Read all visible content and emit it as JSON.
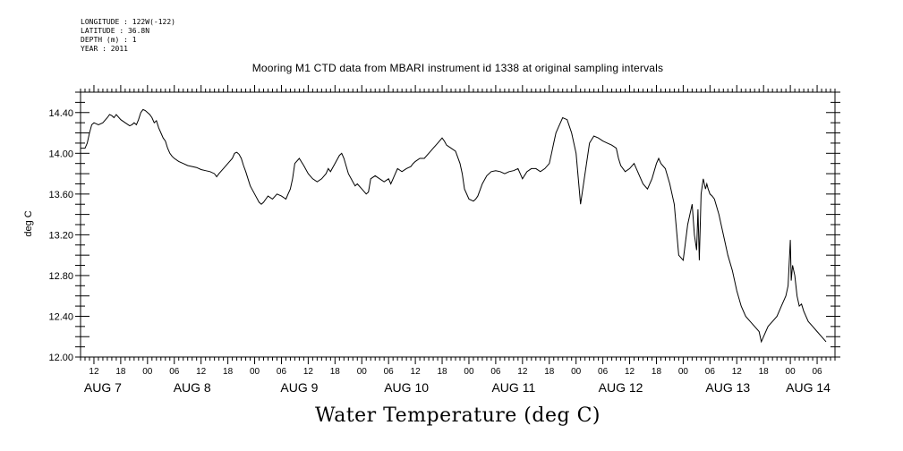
{
  "metadata": {
    "longitude": "LONGITUDE : 122W(-122)",
    "latitude": "LATITUDE : 36.8N",
    "depth": "DEPTH (m) : 1",
    "year": "YEAR : 2011"
  },
  "chart_data": {
    "type": "line",
    "title": "Mooring M1 CTD data from MBARI instrument id 1338 at original sampling intervals",
    "xlabel": "Water Temperature (deg C)",
    "ylabel": "deg C",
    "xlim": [
      -15,
      154
    ],
    "ylim": [
      12.0,
      14.6
    ],
    "y_ticks": [
      12.0,
      12.4,
      12.8,
      13.2,
      13.6,
      14.0,
      14.4
    ],
    "y_tick_labels": [
      "12.00",
      "12.40",
      "12.80",
      "13.20",
      "13.60",
      "14.00",
      "14.40"
    ],
    "hour_ticks": [
      {
        "x": -12,
        "label": "12"
      },
      {
        "x": -6,
        "label": "18"
      },
      {
        "x": 0,
        "label": "00"
      },
      {
        "x": 6,
        "label": "06"
      },
      {
        "x": 12,
        "label": "12"
      },
      {
        "x": 18,
        "label": "18"
      },
      {
        "x": 24,
        "label": "00"
      },
      {
        "x": 30,
        "label": "06"
      },
      {
        "x": 36,
        "label": "12"
      },
      {
        "x": 42,
        "label": "18"
      },
      {
        "x": 48,
        "label": "00"
      },
      {
        "x": 54,
        "label": "06"
      },
      {
        "x": 60,
        "label": "12"
      },
      {
        "x": 66,
        "label": "18"
      },
      {
        "x": 72,
        "label": "00"
      },
      {
        "x": 78,
        "label": "06"
      },
      {
        "x": 84,
        "label": "12"
      },
      {
        "x": 90,
        "label": "18"
      },
      {
        "x": 96,
        "label": "00"
      },
      {
        "x": 102,
        "label": "06"
      },
      {
        "x": 108,
        "label": "12"
      },
      {
        "x": 114,
        "label": "18"
      },
      {
        "x": 120,
        "label": "00"
      },
      {
        "x": 126,
        "label": "06"
      },
      {
        "x": 132,
        "label": "12"
      },
      {
        "x": 138,
        "label": "18"
      },
      {
        "x": 144,
        "label": "00"
      },
      {
        "x": 150,
        "label": "06"
      }
    ],
    "day_labels": [
      {
        "x": -10,
        "label": "AUG  7"
      },
      {
        "x": 10,
        "label": "AUG  8"
      },
      {
        "x": 34,
        "label": "AUG  9"
      },
      {
        "x": 58,
        "label": "AUG 10"
      },
      {
        "x": 82,
        "label": "AUG 11"
      },
      {
        "x": 106,
        "label": "AUG 12"
      },
      {
        "x": 130,
        "label": "AUG 13"
      },
      {
        "x": 148,
        "label": "AUG 14"
      }
    ],
    "series": [
      {
        "color": "#000000",
        "x": [
          -15,
          -14,
          -13.5,
          -13,
          -12.5,
          -12,
          -11,
          -10,
          -9,
          -8.5,
          -8,
          -7.5,
          -7,
          -6,
          -5,
          -4,
          -3.5,
          -3,
          -2.5,
          -2,
          -1.5,
          -1,
          -0.5,
          0,
          0.5,
          1,
          1.5,
          2,
          2.5,
          3,
          3.5,
          4,
          4.5,
          5,
          5.5,
          6,
          7,
          8,
          9,
          10,
          11,
          12,
          13,
          14,
          15,
          15.5,
          16,
          17,
          18,
          19,
          19.5,
          20,
          20.5,
          21,
          21.5,
          22,
          22.5,
          23,
          24,
          25,
          25.5,
          26,
          26.5,
          27,
          28,
          29,
          30,
          31,
          31.5,
          32,
          32.5,
          33,
          34,
          35,
          36,
          37,
          38,
          39,
          40,
          40.5,
          41,
          42,
          43,
          43.5,
          44,
          45,
          46,
          46.5,
          47,
          48,
          49,
          49.5,
          50,
          51,
          52,
          53,
          54,
          54.5,
          55,
          55.5,
          56,
          57,
          58,
          59,
          59.5,
          60,
          61,
          62,
          63,
          64,
          65,
          66,
          66.5,
          67,
          68,
          69,
          70,
          70.5,
          71,
          72,
          73,
          73.5,
          74,
          75,
          76,
          77,
          78,
          79,
          80,
          81,
          82,
          83,
          83.5,
          84,
          85,
          86,
          87,
          88,
          89,
          90,
          90.5,
          91,
          91.5,
          92,
          92.5,
          93,
          94,
          95,
          96,
          97,
          98,
          99,
          100,
          101,
          102,
          103,
          104,
          105,
          105.5,
          106,
          107,
          108,
          109,
          110,
          110.5,
          111,
          112,
          113,
          114,
          114.5,
          115,
          116,
          117,
          118,
          119,
          120,
          121,
          122,
          122.5,
          123,
          123.3,
          123.6,
          124,
          124.5,
          125,
          125.3,
          125.6,
          126,
          126.5,
          127,
          128,
          129,
          130,
          131,
          132,
          133,
          134,
          135,
          136,
          137,
          137.5,
          138,
          139,
          140,
          141,
          142,
          143,
          143.5,
          144,
          144.2,
          144.5,
          145,
          145.5,
          146,
          146.5,
          147,
          148,
          149,
          150,
          151,
          152
        ],
        "y": [
          14.05,
          14.05,
          14.1,
          14.2,
          14.28,
          14.3,
          14.28,
          14.3,
          14.35,
          14.38,
          14.37,
          14.35,
          14.38,
          14.33,
          14.3,
          14.27,
          14.28,
          14.3,
          14.28,
          14.33,
          14.4,
          14.43,
          14.42,
          14.4,
          14.38,
          14.35,
          14.3,
          14.32,
          14.25,
          14.2,
          14.15,
          14.12,
          14.05,
          14.0,
          13.97,
          13.95,
          13.92,
          13.9,
          13.88,
          13.87,
          13.86,
          13.84,
          13.83,
          13.82,
          13.8,
          13.77,
          13.8,
          13.85,
          13.9,
          13.95,
          14.0,
          14.01,
          13.99,
          13.95,
          13.88,
          13.82,
          13.75,
          13.68,
          13.6,
          13.52,
          13.5,
          13.52,
          13.55,
          13.58,
          13.55,
          13.6,
          13.58,
          13.55,
          13.6,
          13.65,
          13.75,
          13.9,
          13.95,
          13.88,
          13.8,
          13.75,
          13.72,
          13.75,
          13.8,
          13.85,
          13.82,
          13.9,
          13.98,
          14.0,
          13.95,
          13.8,
          13.72,
          13.68,
          13.7,
          13.65,
          13.6,
          13.62,
          13.75,
          13.78,
          13.75,
          13.72,
          13.75,
          13.7,
          13.75,
          13.8,
          13.85,
          13.82,
          13.85,
          13.87,
          13.9,
          13.92,
          13.95,
          13.95,
          14.0,
          14.05,
          14.1,
          14.15,
          14.12,
          14.08,
          14.05,
          14.02,
          13.9,
          13.8,
          13.65,
          13.55,
          13.53,
          13.55,
          13.58,
          13.7,
          13.78,
          13.82,
          13.83,
          13.82,
          13.8,
          13.82,
          13.83,
          13.85,
          13.8,
          13.75,
          13.82,
          13.85,
          13.85,
          13.82,
          13.85,
          13.9,
          14.0,
          14.1,
          14.2,
          14.25,
          14.3,
          14.35,
          14.33,
          14.2,
          14.0,
          13.5,
          13.8,
          14.1,
          14.17,
          14.15,
          14.12,
          14.1,
          14.08,
          14.05,
          13.95,
          13.88,
          13.82,
          13.85,
          13.9,
          13.8,
          13.75,
          13.7,
          13.65,
          13.75,
          13.9,
          13.95,
          13.9,
          13.85,
          13.7,
          13.5,
          13.0,
          12.95,
          13.3,
          13.5,
          13.2,
          13.05,
          13.45,
          12.95,
          13.6,
          13.75,
          13.65,
          13.7,
          13.65,
          13.6,
          13.58,
          13.55,
          13.4,
          13.2,
          13.0,
          12.85,
          12.65,
          12.5,
          12.4,
          12.35,
          12.3,
          12.25,
          12.15,
          12.2,
          12.3,
          12.35,
          12.4,
          12.5,
          12.6,
          12.7,
          13.15,
          12.75,
          12.9,
          12.8,
          12.6,
          12.5,
          12.52,
          12.45,
          12.35,
          12.3,
          12.25,
          12.2,
          12.15
        ]
      }
    ],
    "grid": false
  }
}
